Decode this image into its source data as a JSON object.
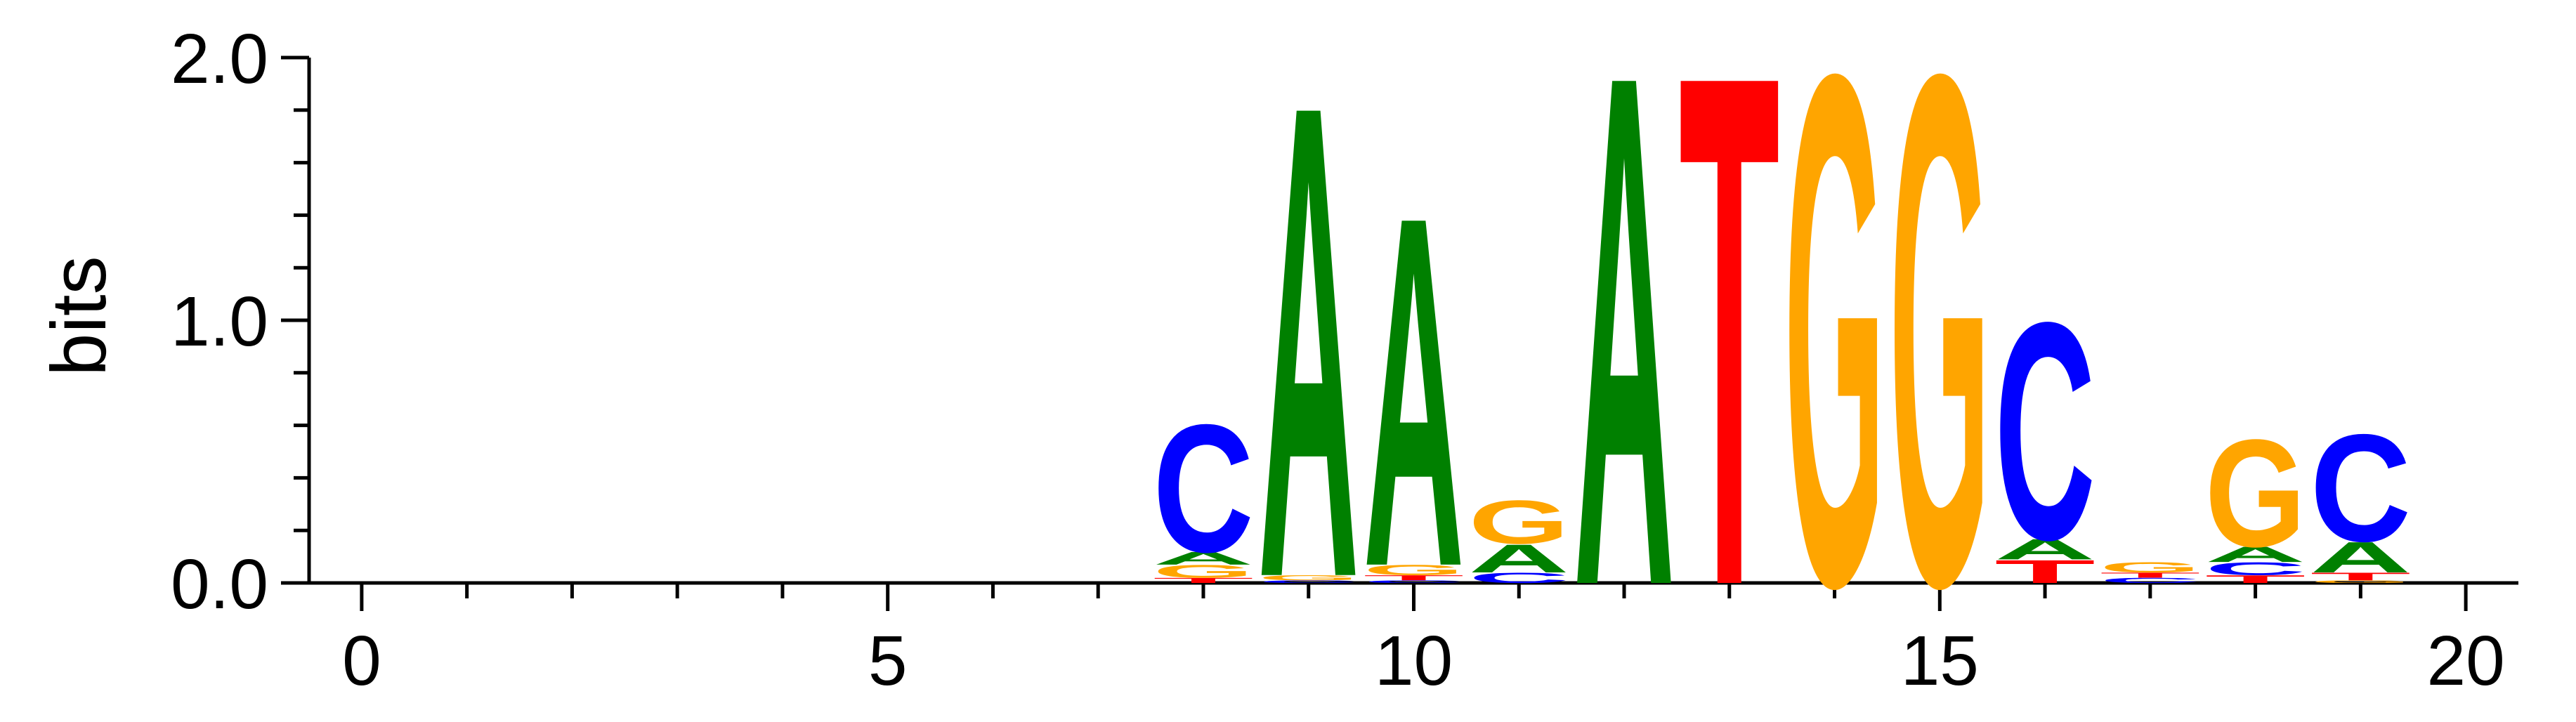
{
  "chart_data": {
    "type": "sequence-logo",
    "ylabel": "bits",
    "ylim": [
      0,
      2.0
    ],
    "xlim": [
      -0.5,
      20.5
    ],
    "y_ticks": [
      {
        "value": 0,
        "label": "0.0"
      },
      {
        "value": 1,
        "label": "1.0"
      },
      {
        "value": 2,
        "label": "2.0"
      }
    ],
    "x_ticks": [
      {
        "value": 0,
        "label": "0"
      },
      {
        "value": 5,
        "label": "5"
      },
      {
        "value": 10,
        "label": "10"
      },
      {
        "value": 15,
        "label": "15"
      },
      {
        "value": 20,
        "label": "20"
      }
    ],
    "colors": {
      "A": "#008000",
      "C": "#0000ff",
      "G": "#ffa500",
      "T": "#ff0000"
    },
    "positions": [
      {
        "x": 8,
        "stack": [
          [
            "T",
            0.02
          ],
          [
            "G",
            0.05
          ],
          [
            "A",
            0.05
          ],
          [
            "C",
            0.5
          ]
        ]
      },
      {
        "x": 9,
        "stack": [
          [
            "C",
            0.01
          ],
          [
            "G",
            0.02
          ],
          [
            "A",
            1.85
          ]
        ]
      },
      {
        "x": 10,
        "stack": [
          [
            "C",
            0.01
          ],
          [
            "T",
            0.02
          ],
          [
            "G",
            0.04
          ],
          [
            "A",
            1.37
          ]
        ]
      },
      {
        "x": 11,
        "stack": [
          [
            "C",
            0.04
          ],
          [
            "A",
            0.11
          ],
          [
            "G",
            0.17
          ]
        ]
      },
      {
        "x": 12,
        "stack": [
          [
            "A",
            2.0
          ]
        ]
      },
      {
        "x": 13,
        "stack": [
          [
            "T",
            2.0
          ]
        ]
      },
      {
        "x": 14,
        "stack": [
          [
            "G",
            2.0
          ]
        ]
      },
      {
        "x": 15,
        "stack": [
          [
            "G",
            2.0
          ]
        ]
      },
      {
        "x": 16,
        "stack": [
          [
            "T",
            0.09
          ],
          [
            "A",
            0.08
          ],
          [
            "C",
            0.85
          ]
        ]
      },
      {
        "x": 17,
        "stack": [
          [
            "C",
            0.02
          ],
          [
            "T",
            0.02
          ],
          [
            "G",
            0.04
          ]
        ]
      },
      {
        "x": 18,
        "stack": [
          [
            "T",
            0.03
          ],
          [
            "C",
            0.05
          ],
          [
            "A",
            0.06
          ],
          [
            "G",
            0.42
          ]
        ]
      },
      {
        "x": 19,
        "stack": [
          [
            "G",
            0.01
          ],
          [
            "T",
            0.03
          ],
          [
            "A",
            0.12
          ],
          [
            "C",
            0.42
          ]
        ]
      }
    ]
  }
}
